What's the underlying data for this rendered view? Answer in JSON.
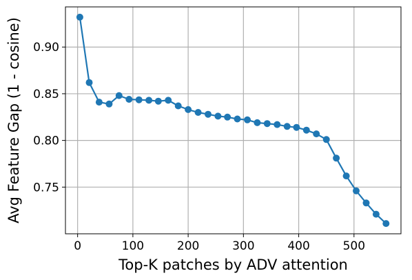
{
  "chart_data": {
    "type": "line",
    "title": "",
    "xlabel": "Top-K patches by ADV attention",
    "ylabel": "Avg Feature Gap (1 - cosine)",
    "xlim": [
      -22,
      585
    ],
    "ylim": [
      0.7,
      0.943
    ],
    "xticks": [
      0,
      100,
      200,
      300,
      400,
      500
    ],
    "yticks": [
      0.75,
      0.8,
      0.85,
      0.9
    ],
    "xtick_labels": [
      "0",
      "100",
      "200",
      "300",
      "400",
      "500"
    ],
    "ytick_labels": [
      "0.75",
      "0.80",
      "0.85",
      "0.90"
    ],
    "grid": true,
    "legend": "none",
    "series": [
      {
        "color": "#1f77b4",
        "marker": "circle",
        "x": [
          4,
          21,
          39,
          57,
          75,
          93,
          111,
          129,
          146,
          164,
          182,
          200,
          218,
          236,
          254,
          271,
          289,
          307,
          325,
          343,
          361,
          379,
          396,
          414,
          432,
          450,
          468,
          486,
          504,
          522,
          540,
          558
        ],
        "y": [
          0.932,
          0.862,
          0.841,
          0.839,
          0.848,
          0.844,
          0.8435,
          0.843,
          0.842,
          0.843,
          0.837,
          0.833,
          0.83,
          0.828,
          0.826,
          0.825,
          0.823,
          0.822,
          0.819,
          0.818,
          0.817,
          0.815,
          0.814,
          0.811,
          0.807,
          0.801,
          0.781,
          0.762,
          0.746,
          0.733,
          0.721,
          0.711
        ]
      }
    ]
  }
}
